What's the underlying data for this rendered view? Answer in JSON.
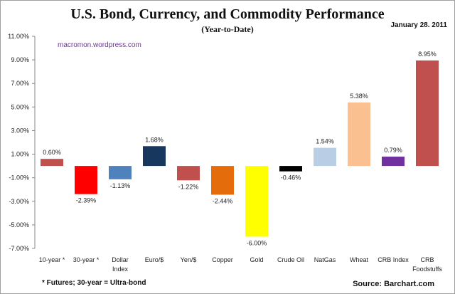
{
  "chart_data": {
    "type": "bar",
    "title": "U.S. Bond, Currency, and Commodity Performance",
    "subtitle": "(Year-to-Date)",
    "date": "January 28. 2011",
    "watermark": "macromon.wordpress.com",
    "footnote": "* Futures; 30-year = Ultra-bond",
    "source": "Source: Barchart.com",
    "categories": [
      "10-year *",
      "30-year *",
      "Dollar Index",
      "Euro/$",
      "Yen/$",
      "Copper",
      "Gold",
      "Crude Oil",
      "NatGas",
      "Wheat",
      "CRB Index",
      "CRB Foodstuffs"
    ],
    "values": [
      0.6,
      -2.39,
      -1.13,
      1.68,
      -1.22,
      -2.44,
      -6.0,
      -0.46,
      1.54,
      5.38,
      0.79,
      8.95
    ],
    "data_labels": [
      "0.60%",
      "-2.39%",
      "-1.13%",
      "1.68%",
      "-1.22%",
      "-2.44%",
      "-6.00%",
      "-0.46%",
      "1.54%",
      "5.38%",
      "0.79%",
      "8.95%"
    ],
    "colors": [
      "#c0504d",
      "#ff0000",
      "#4f81bd",
      "#17375e",
      "#c0504d",
      "#e46c0a",
      "#ffff00",
      "#000000",
      "#b9cde5",
      "#fac090",
      "#7030a0",
      "#c0504d"
    ],
    "ylim": [
      -7,
      11
    ],
    "yticks": [
      11,
      9,
      7,
      5,
      3,
      1,
      -1,
      -3,
      -5,
      -7
    ],
    "ytick_labels": [
      "11.00%",
      "9.00%",
      "7.00%",
      "5.00%",
      "3.00%",
      "1.00%",
      "-1.00%",
      "-3.00%",
      "-5.00%",
      "-7.00%"
    ],
    "grid": false,
    "legend": "none"
  }
}
